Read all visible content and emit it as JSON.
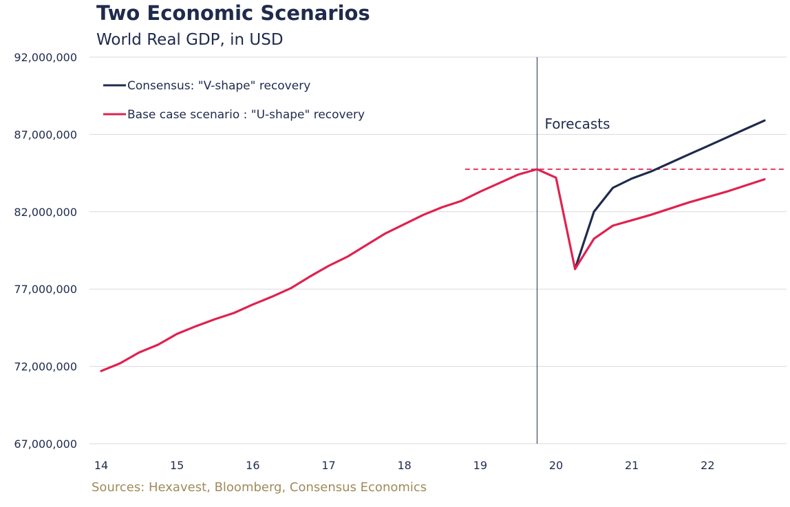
{
  "title": "Two Economic Scenarios",
  "subtitle": "World Real GDP, in USD",
  "source": "Sources: Hexavest, Bloomberg, Consensus Economics",
  "colors": {
    "consensus": "#1f2a4d",
    "base": "#e0214f",
    "grid": "#d9d9d9",
    "vline": "#1f2a4d"
  },
  "chart_data": {
    "type": "line",
    "title": "Two Economic Scenarios",
    "subtitle": "World Real GDP, in USD",
    "ylim": [
      67000000,
      92000000
    ],
    "xlim": [
      14,
      22.85
    ],
    "yticks": [
      92000000,
      87000000,
      82000000,
      77000000,
      72000000,
      67000000
    ],
    "ytick_labels": [
      "92,000,000",
      "87,000,000",
      "82,000,000",
      "77,000,000",
      "72,000,000",
      "67,000,000"
    ],
    "xticks": [
      14,
      15,
      16,
      17,
      18,
      19,
      20,
      21,
      22
    ],
    "xtick_labels": [
      "14",
      "15",
      "16",
      "17",
      "18",
      "19",
      "20",
      "21",
      "22"
    ],
    "grid": true,
    "legend_position": "top-left",
    "series": [
      {
        "name": "Base case scenario : \"U-shape\" recovery",
        "color": "#e0214f",
        "x": [
          14.0,
          14.25,
          14.5,
          14.75,
          15.0,
          15.25,
          15.5,
          15.75,
          16.0,
          16.25,
          16.5,
          16.75,
          17.0,
          17.25,
          17.5,
          17.75,
          18.0,
          18.25,
          18.5,
          18.75,
          19.0,
          19.25,
          19.5,
          19.75,
          20.0,
          20.25,
          20.5,
          20.75,
          21.0,
          21.25,
          21.5,
          21.75,
          22.0,
          22.25,
          22.5,
          22.75
        ],
        "y": [
          71700000,
          72200000,
          72900000,
          73400000,
          74100000,
          74600000,
          75050000,
          75450000,
          76000000,
          76500000,
          77050000,
          77800000,
          78500000,
          79100000,
          79850000,
          80600000,
          81200000,
          81800000,
          82300000,
          82700000,
          83300000,
          83850000,
          84400000,
          84750000,
          84200000,
          78300000,
          80250000,
          81100000,
          81450000,
          81800000,
          82200000,
          82600000,
          82950000,
          83300000,
          83700000,
          84100000
        ]
      },
      {
        "name": "Consensus: \"V-shape\" recovery",
        "color": "#1f2a4d",
        "x": [
          20.25,
          20.5,
          20.75,
          21.0,
          21.25,
          21.5,
          21.75,
          22.0,
          22.25,
          22.5,
          22.75
        ],
        "y": [
          78300000,
          82000000,
          83550000,
          84150000,
          84600000,
          85150000,
          85700000,
          86250000,
          86800000,
          87350000,
          87900000
        ]
      }
    ],
    "reference_line": {
      "y": 84750000,
      "x_start": 18.8,
      "style": "dashed"
    },
    "forecast_line": {
      "x": 19.75
    },
    "annotations": [
      {
        "text": "Forecasts"
      }
    ]
  }
}
